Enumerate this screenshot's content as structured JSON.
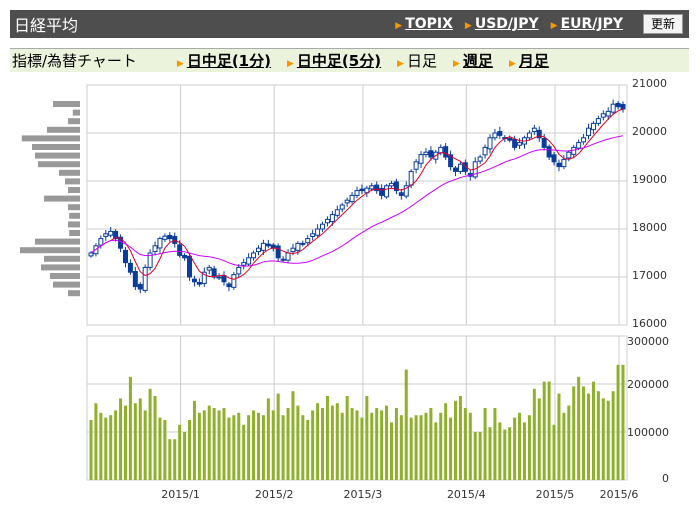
{
  "header": {
    "title": "日経平均",
    "links": [
      "TOPIX",
      "USD/JPY",
      "EUR/JPY"
    ],
    "refresh": "更新"
  },
  "subbar": {
    "label": "指標/為替チャート",
    "tabs": [
      {
        "label": "日中足(1分)",
        "link": true
      },
      {
        "label": "日中足(5分)",
        "link": true
      },
      {
        "label": "日足",
        "link": false
      },
      {
        "label": "週足",
        "link": true
      },
      {
        "label": "月足",
        "link": true
      }
    ]
  },
  "colors": {
    "up": "#0a3c9c",
    "ma_short": "#e0002a",
    "ma_long": "#cc00ff",
    "volume": "#8fb02a",
    "profile": "#999999",
    "grid": "#cccccc"
  },
  "chart_data": [
    {
      "type": "candlestick",
      "ylim": [
        16000,
        21000
      ],
      "yticks": [
        "21000",
        "20000",
        "19000",
        "18000",
        "17000",
        "16000"
      ],
      "ytick_values": [
        21000,
        20000,
        19000,
        18000,
        17000,
        16000
      ],
      "xticks": [
        {
          "label": "2015/1",
          "index": 19
        },
        {
          "label": "2015/2",
          "index": 38
        },
        {
          "label": "2015/3",
          "index": 56
        },
        {
          "label": "2015/4",
          "index": 77
        },
        {
          "label": "2015/5",
          "index": 95
        },
        {
          "label": "2015/6",
          "index": 108
        }
      ],
      "closes": [
        17500,
        17650,
        17800,
        17900,
        17950,
        17800,
        17600,
        17300,
        17100,
        16800,
        16750,
        17200,
        17500,
        17650,
        17800,
        17850,
        17800,
        17700,
        17450,
        17400,
        17000,
        16900,
        16850,
        17100,
        17200,
        17000,
        17000,
        16900,
        16800,
        17050,
        17200,
        17300,
        17400,
        17500,
        17600,
        17700,
        17650,
        17600,
        17400,
        17350,
        17500,
        17600,
        17700,
        17700,
        17800,
        17900,
        18000,
        18100,
        18200,
        18300,
        18400,
        18500,
        18600,
        18700,
        18800,
        18800,
        18850,
        18900,
        18800,
        18700,
        18900,
        18950,
        18800,
        18700,
        18900,
        19200,
        19400,
        19550,
        19600,
        19500,
        19600,
        19700,
        19500,
        19300,
        19200,
        19350,
        19200,
        19100,
        19400,
        19500,
        19700,
        19900,
        20000,
        19950,
        19900,
        19850,
        19700,
        19800,
        19900,
        20000,
        20100,
        19900,
        19700,
        19500,
        19400,
        19300,
        19450,
        19600,
        19700,
        19800,
        19900,
        20100,
        20200,
        20300,
        20400,
        20450,
        20600,
        20550,
        20500
      ],
      "ma_periods": [
        5,
        25
      ]
    },
    {
      "type": "bar",
      "ylim": [
        0,
        300000
      ],
      "yticks": [
        "300000",
        "200000",
        "100000",
        "0"
      ],
      "ytick_values": [
        300000,
        200000,
        100000,
        0
      ],
      "values": [
        125000,
        160000,
        140000,
        130000,
        135000,
        145000,
        170000,
        155000,
        215000,
        160000,
        170000,
        145000,
        190000,
        175000,
        130000,
        125000,
        85000,
        85000,
        115000,
        100000,
        125000,
        165000,
        140000,
        145000,
        155000,
        150000,
        145000,
        150000,
        130000,
        135000,
        140000,
        115000,
        135000,
        145000,
        140000,
        135000,
        170000,
        145000,
        180000,
        135000,
        150000,
        185000,
        155000,
        135000,
        125000,
        145000,
        160000,
        150000,
        175000,
        155000,
        160000,
        140000,
        175000,
        150000,
        145000,
        130000,
        175000,
        140000,
        150000,
        145000,
        155000,
        120000,
        150000,
        135000,
        230000,
        130000,
        135000,
        135000,
        140000,
        150000,
        120000,
        140000,
        160000,
        130000,
        165000,
        175000,
        150000,
        140000,
        100000,
        100000,
        150000,
        110000,
        150000,
        120000,
        105000,
        110000,
        130000,
        140000,
        120000,
        135000,
        190000,
        170000,
        205000,
        205000,
        115000,
        180000,
        140000,
        155000,
        195000,
        215000,
        195000,
        180000,
        205000,
        185000,
        170000,
        165000,
        185000,
        240000,
        240000
      ],
      "profile": [
        0.45,
        0.12,
        0.2,
        0.55,
        0.97,
        0.8,
        0.75,
        0.7,
        0.35,
        0.25,
        0.2,
        0.6,
        0.2,
        0.18,
        0.2,
        0.18,
        0.75,
        1.0,
        0.6,
        0.65,
        0.5,
        0.45,
        0.2
      ]
    }
  ]
}
